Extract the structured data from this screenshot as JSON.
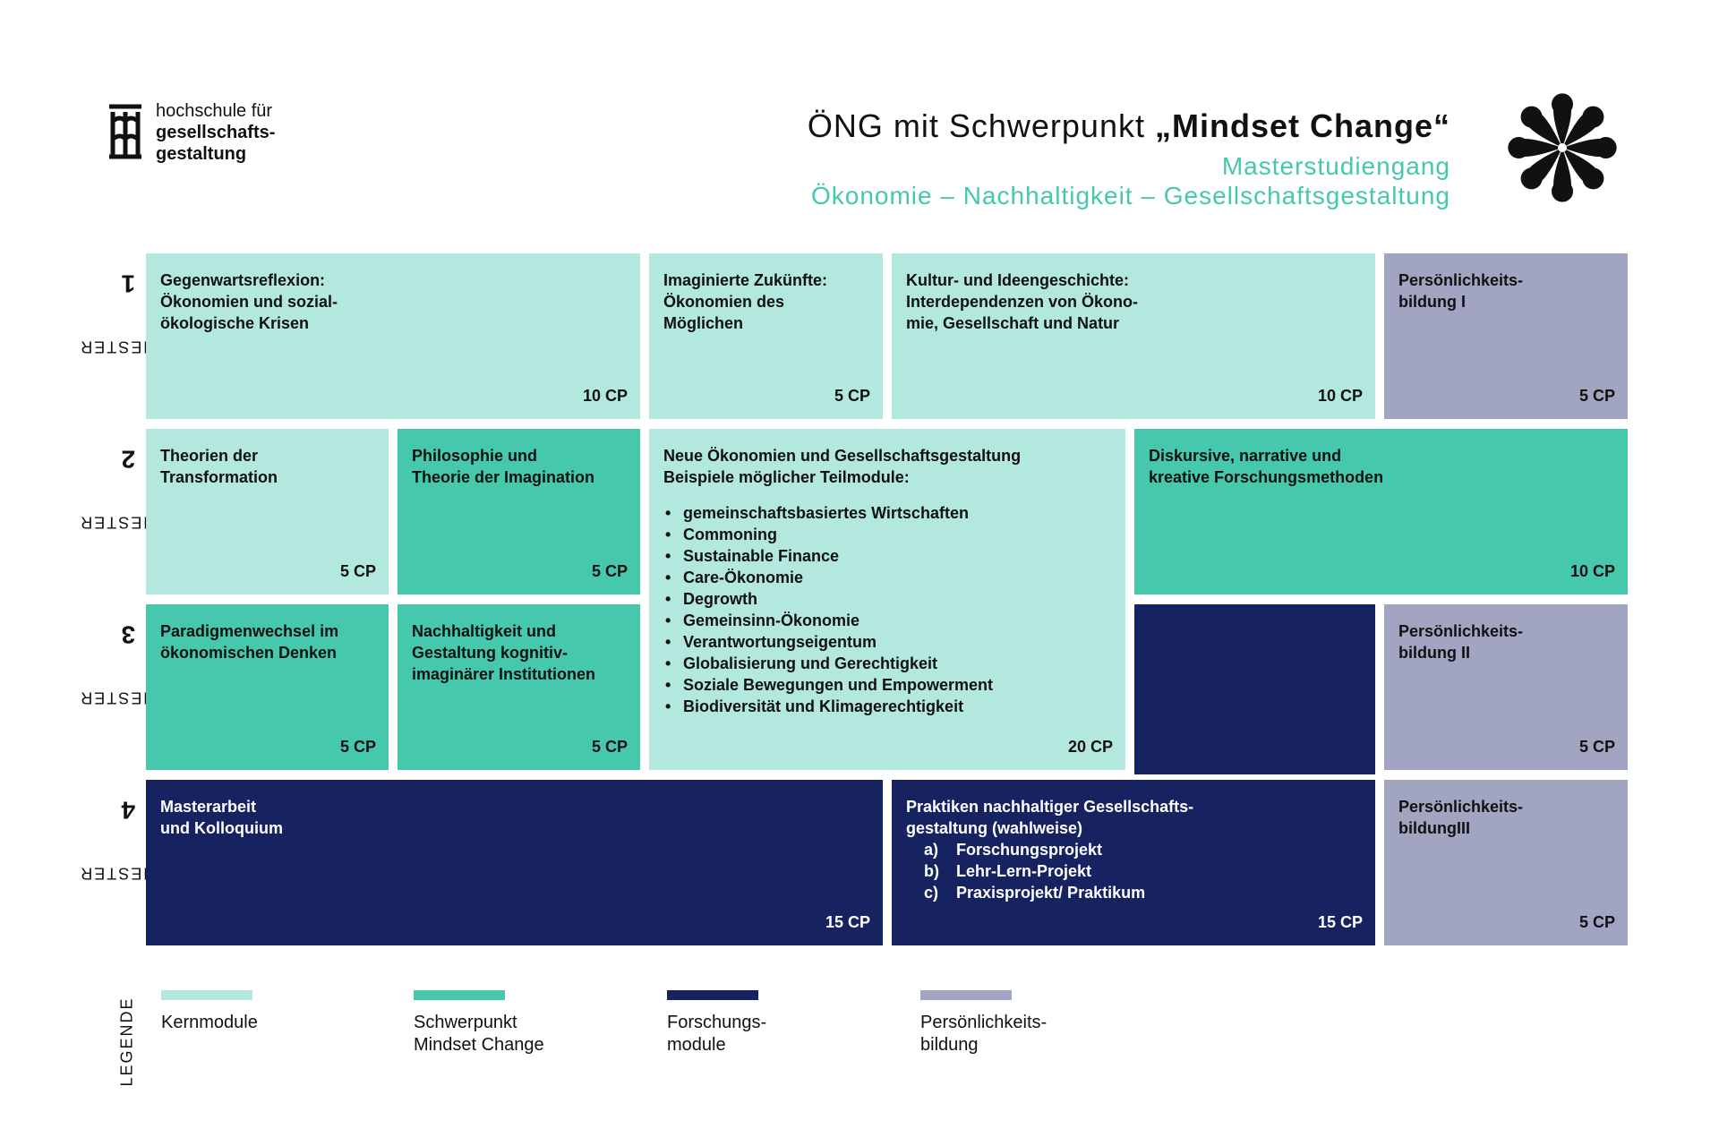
{
  "header": {
    "logo_line1": "hochschule für",
    "logo_line2": "gesellschafts-",
    "logo_line3": "gestaltung",
    "title_prefix": "ÖNG mit Schwerpunkt ",
    "title_bold": "„Mindset Change“",
    "subtitle1": "Masterstudiengang",
    "subtitle2": "Ökonomie – Nachhaltigkeit – Gesellschaftsgestaltung"
  },
  "semesters": [
    {
      "word": "SEMESTER",
      "num": "1"
    },
    {
      "word": "SEMESTER",
      "num": "2"
    },
    {
      "word": "SEMESTER",
      "num": "3"
    },
    {
      "word": "SEMESTER",
      "num": "4"
    }
  ],
  "modules": {
    "s1_a": {
      "title": "Gegenwartsreflexion:\nÖkonomien und sozial-\nökologische Krisen",
      "cp": "10 CP"
    },
    "s1_b": {
      "title": "Imaginierte Zukünfte:\nÖkonomien des\nMöglichen",
      "cp": "5 CP"
    },
    "s1_c": {
      "title": "Kultur- und Ideengeschichte:\nInterdependenzen von Ökono-\nmie, Gesellschaft und Natur",
      "cp": "10 CP"
    },
    "s1_d": {
      "title": "Persönlichkeits-\nbildung I",
      "cp": "5 CP"
    },
    "s2_a": {
      "title": "Theorien der\nTransformation",
      "cp": "5 CP"
    },
    "s2_b": {
      "title": "Philosophie und\nTheorie der Imagination",
      "cp": "5 CP"
    },
    "s2_c": {
      "title": "Neue Ökonomien und Gesellschaftsgestaltung\nBeispiele möglicher Teilmodule:",
      "items": [
        "gemeinschaftsbasiertes Wirtschaften",
        "Commoning",
        "Sustainable Finance",
        "Care-Ökonomie",
        "Degrowth",
        "Gemeinsinn-Ökonomie",
        "Verantwortungseigentum",
        "Globalisierung und Gerechtigkeit",
        "Soziale Bewegungen und Empowerment",
        "Biodiversität und Klimagerechtigkeit"
      ],
      "cp": "20 CP"
    },
    "s2_d": {
      "title": "Diskursive, narrative und\nkreative Forschungsmethoden",
      "cp": "10 CP"
    },
    "s3_a": {
      "title": "Paradigmenwechsel im\nökonomischen Denken",
      "cp": "5 CP"
    },
    "s3_b": {
      "title": "Nachhaltigkeit und\nGestaltung kognitiv-\nimaginärer Institutionen",
      "cp": "5 CP"
    },
    "s3_d": {
      "title": "Persönlichkeits-\nbildung II",
      "cp": "5 CP"
    },
    "s4_a": {
      "title": "Masterarbeit\nund Kolloquium",
      "cp": "15 CP"
    },
    "s4_b": {
      "title": "Praktiken nachhaltiger Gesellschafts-\ngestaltung (wahlweise)",
      "items": [
        {
          "mark": "a)",
          "text": "Forschungsprojekt"
        },
        {
          "mark": "b)",
          "text": "Lehr-Lern-Projekt"
        },
        {
          "mark": "c)",
          "text": "Praxisprojekt/ Praktikum"
        }
      ],
      "cp": "15 CP"
    },
    "s4_d": {
      "title": "Persönlichkeits-\nbildungIII",
      "cp": "5 CP"
    }
  },
  "legend": {
    "heading": "LEGENDE",
    "items": [
      {
        "label": "Kernmodule",
        "color": "#b3e8df"
      },
      {
        "label": "Schwerpunkt\nMindset Change",
        "color": "#46c8ad"
      },
      {
        "label": "Forschungs-\nmodule",
        "color": "#162360"
      },
      {
        "label": "Persönlichkeits-\nbildung",
        "color": "#a2a5c2"
      }
    ]
  },
  "colors": {
    "kern": "#b3e8df",
    "schwerpunkt": "#46c8ad",
    "forschung": "#162360",
    "persoenlichkeit": "#a2a5c2",
    "accent_text": "#46c8ad"
  }
}
